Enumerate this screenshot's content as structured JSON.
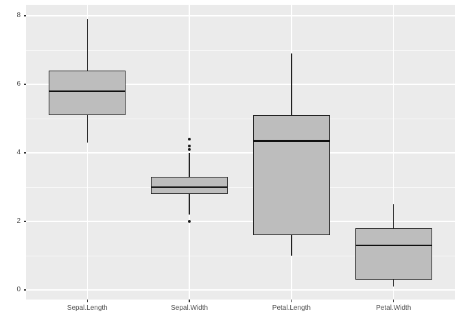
{
  "chart_data": {
    "type": "boxplot",
    "title": "",
    "xlabel": "",
    "ylabel": "",
    "categories": [
      "Sepal.Length",
      "Sepal.Width",
      "Petal.Length",
      "Petal.Width"
    ],
    "series": [
      {
        "name": "Sepal.Length",
        "whisker_low": 4.3,
        "q1": 5.1,
        "median": 5.8,
        "q3": 6.4,
        "whisker_high": 7.9,
        "outliers": []
      },
      {
        "name": "Sepal.Width",
        "whisker_low": 2.2,
        "q1": 2.8,
        "median": 3.0,
        "q3": 3.3,
        "whisker_high": 4.0,
        "outliers": [
          2.0,
          4.1,
          4.2,
          4.4
        ]
      },
      {
        "name": "Petal.Length",
        "whisker_low": 1.0,
        "q1": 1.6,
        "median": 4.35,
        "q3": 5.1,
        "whisker_high": 6.9,
        "outliers": []
      },
      {
        "name": "Petal.Width",
        "whisker_low": 0.1,
        "q1": 0.3,
        "median": 1.3,
        "q3": 1.8,
        "whisker_high": 2.5,
        "outliers": []
      }
    ],
    "y_axis": {
      "major_ticks": [
        0,
        2,
        4,
        6,
        8
      ],
      "tick_labels": [
        "0",
        "2",
        "4",
        "6",
        "8"
      ],
      "minor_ticks": [
        1,
        3,
        5,
        7
      ],
      "range": [
        -0.28,
        8.32
      ]
    },
    "x_axis": {
      "labels": [
        "Sepal.Length",
        "Sepal.Width",
        "Petal.Length",
        "Petal.Width"
      ]
    },
    "layout_hints": {
      "grid": "on",
      "legend": "none",
      "style": "ggplot2-grey-theme"
    },
    "colors": {
      "plot_bg": "#FFFFFF",
      "panel_bg": "#EBEBEB",
      "grid": "#FFFFFF",
      "box_fill": "#BDBDBD",
      "box_border": "#222222",
      "median_line": "#111111",
      "outlier": "#1A1A1A",
      "axis_text": "#4D4D4D",
      "tick_mark": "#333333"
    }
  }
}
